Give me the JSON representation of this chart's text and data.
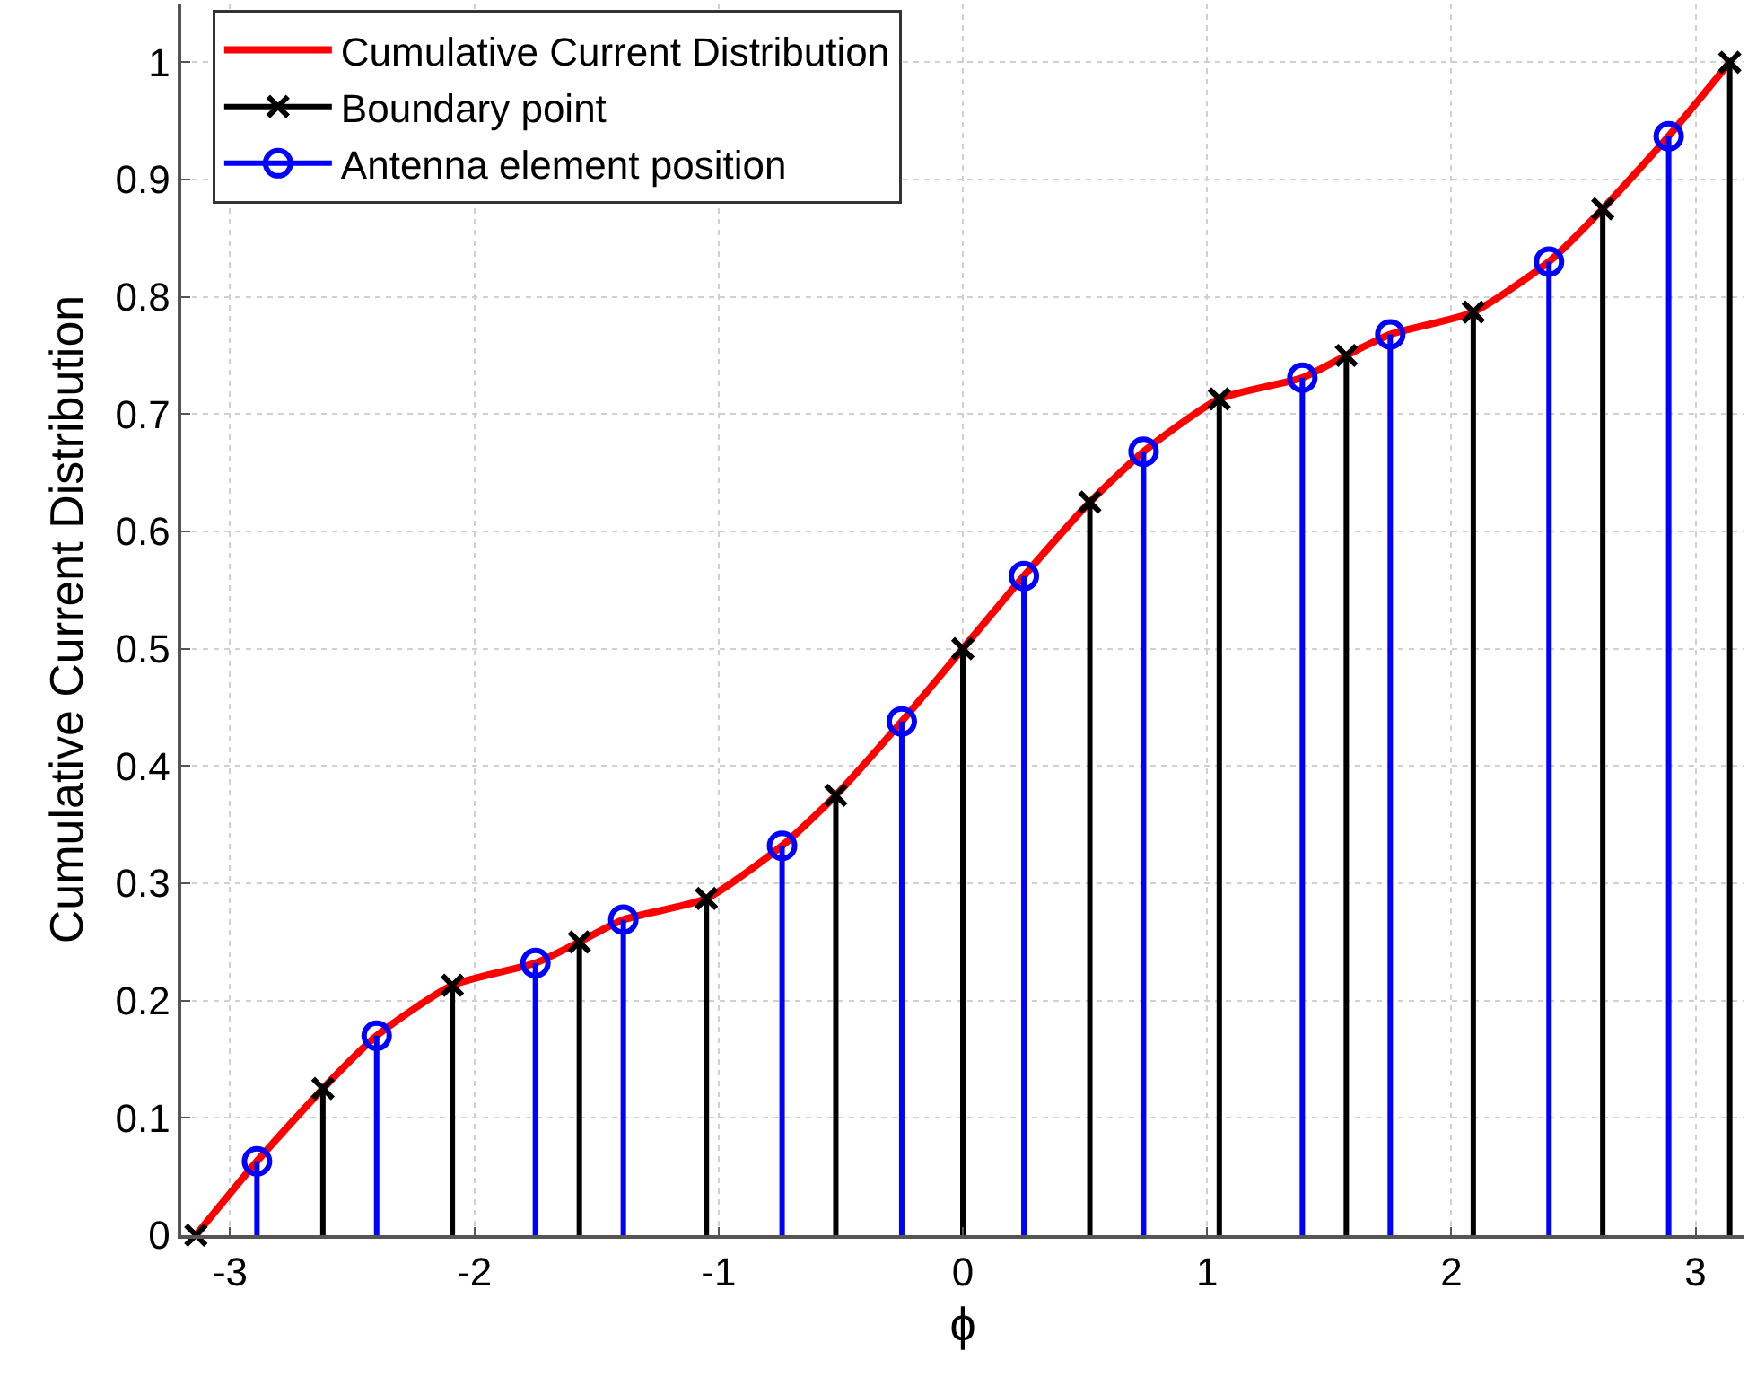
{
  "chart_data": {
    "type": "line",
    "xlabel": "ϕ",
    "ylabel": "Cumulative Current Distribution",
    "xlim": [
      -3.2,
      3.2
    ],
    "xticks": [
      -3,
      -2,
      -1,
      0,
      1,
      2,
      3
    ],
    "ylim": [
      0,
      1.05
    ],
    "yticks": [
      0,
      0.1,
      0.2,
      0.3,
      0.4,
      0.5,
      0.6,
      0.7,
      0.8,
      0.9,
      1
    ],
    "grid": true,
    "legend": "top left",
    "series": [
      {
        "name": "Cumulative Current Distribution",
        "color": "#ff0000",
        "marker": "none",
        "line_style": "solid",
        "x": [
          -3.14,
          -2.89,
          -2.62,
          -2.4,
          -2.09,
          -1.75,
          -1.57,
          -1.39,
          -1.05,
          -0.74,
          -0.52,
          -0.25,
          0,
          0.25,
          0.52,
          0.74,
          1.05,
          1.39,
          1.57,
          1.75,
          2.09,
          2.4,
          2.62,
          2.89,
          3.14
        ],
        "values": [
          0,
          0.063,
          0.125,
          0.17,
          0.213,
          0.232,
          0.25,
          0.269,
          0.287,
          0.332,
          0.375,
          0.438,
          0.5,
          0.562,
          0.625,
          0.668,
          0.713,
          0.731,
          0.75,
          0.768,
          0.787,
          0.83,
          0.875,
          0.937,
          1
        ]
      },
      {
        "name": "Boundary point",
        "type": "lollipop",
        "color": "#000000",
        "marker": "cross",
        "x": [
          -3.14,
          -2.62,
          -2.09,
          -1.57,
          -1.05,
          -0.52,
          0,
          0.52,
          1.05,
          1.57,
          2.09,
          2.62,
          3.14
        ],
        "values": [
          0,
          0.125,
          0.213,
          0.25,
          0.287,
          0.375,
          0.5,
          0.625,
          0.713,
          0.75,
          0.787,
          0.875,
          1
        ]
      },
      {
        "name": "Antenna element position",
        "type": "lollipop",
        "color": "#0000ff",
        "marker": "circle",
        "x": [
          -2.89,
          -2.4,
          -1.75,
          -1.39,
          -0.74,
          -0.25,
          0.25,
          0.74,
          1.39,
          1.75,
          2.4,
          2.89
        ],
        "values": [
          0.063,
          0.17,
          0.232,
          0.269,
          0.332,
          0.438,
          0.562,
          0.668,
          0.731,
          0.768,
          0.83,
          0.937
        ]
      }
    ]
  }
}
